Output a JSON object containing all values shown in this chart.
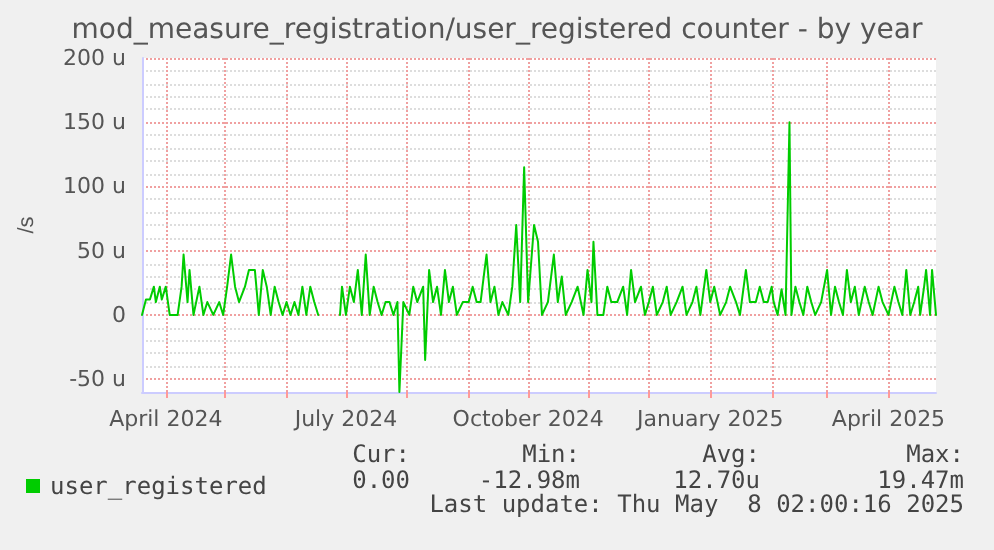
{
  "chart_data": {
    "type": "line",
    "title": "mod_measure_registration/user_registered counter - by year",
    "ylabel": "/s",
    "xlim": [
      "2024-03-20",
      "2025-04-25"
    ],
    "ylim": [
      -60,
      200
    ],
    "xticks": [
      {
        "value": "2024-04-01",
        "label": "April 2024"
      },
      {
        "value": "2024-05-01",
        "label": null
      },
      {
        "value": "2024-06-01",
        "label": null
      },
      {
        "value": "2024-07-01",
        "label": "July 2024"
      },
      {
        "value": "2024-08-01",
        "label": null
      },
      {
        "value": "2024-09-01",
        "label": null
      },
      {
        "value": "2024-10-01",
        "label": "October 2024"
      },
      {
        "value": "2024-11-01",
        "label": null
      },
      {
        "value": "2024-12-01",
        "label": null
      },
      {
        "value": "2025-01-01",
        "label": "January 2025"
      },
      {
        "value": "2025-02-01",
        "label": null
      },
      {
        "value": "2025-03-01",
        "label": null
      },
      {
        "value": "2025-04-01",
        "label": "April 2025"
      }
    ],
    "yticks": [
      {
        "value": -50,
        "label": "-50 u"
      },
      0,
      {
        "value": 50,
        "label": "50 u"
      },
      {
        "value": 100,
        "label": "100 u"
      },
      {
        "value": 150,
        "label": "150 u"
      },
      {
        "value": 200,
        "label": "200 u"
      }
    ],
    "grid": true,
    "legend": "bottom left",
    "marker": "none",
    "line_style": "solid",
    "x": [
      "2024-03-20",
      "2024-03-22",
      "2024-03-24",
      "2024-03-26",
      "2024-03-27",
      "2024-03-29",
      "2024-03-30",
      "2024-04-01",
      "2024-04-03",
      "2024-04-07",
      "2024-04-09",
      "2024-04-10",
      "2024-04-12",
      "2024-04-13",
      "2024-04-15",
      "2024-04-18",
      "2024-04-20",
      "2024-04-22",
      "2024-04-25",
      "2024-04-28",
      "2024-04-30",
      "2024-05-02",
      "2024-05-04",
      "2024-05-06",
      "2024-05-08",
      "2024-05-11",
      "2024-05-13",
      "2024-05-16",
      "2024-05-18",
      "2024-05-20",
      "2024-05-22",
      "2024-05-24",
      "2024-05-26",
      "2024-05-28",
      "2024-05-30",
      "2024-06-01",
      "2024-06-03",
      "2024-06-05",
      "2024-06-07",
      "2024-06-09",
      "2024-06-11",
      "2024-06-13",
      "2024-06-15",
      "2024-06-17",
      "2024-06-18",
      "2024-06-28",
      "2024-06-29",
      "2024-07-01",
      "2024-07-03",
      "2024-07-05",
      "2024-07-07",
      "2024-07-09",
      "2024-07-11",
      "2024-07-13",
      "2024-07-15",
      "2024-07-17",
      "2024-07-19",
      "2024-07-21",
      "2024-07-23",
      "2024-07-25",
      "2024-07-27",
      "2024-07-28",
      "2024-07-30",
      "2024-08-02",
      "2024-08-04",
      "2024-08-06",
      "2024-08-09",
      "2024-08-10",
      "2024-08-12",
      "2024-08-14",
      "2024-08-16",
      "2024-08-18",
      "2024-08-20",
      "2024-08-22",
      "2024-08-24",
      "2024-08-26",
      "2024-08-29",
      "2024-09-01",
      "2024-09-03",
      "2024-09-05",
      "2024-09-07",
      "2024-09-09",
      "2024-09-10",
      "2024-09-12",
      "2024-09-14",
      "2024-09-16",
      "2024-09-18",
      "2024-09-21",
      "2024-09-23",
      "2024-09-25",
      "2024-09-27",
      "2024-09-29",
      "2024-10-01",
      "2024-10-04",
      "2024-10-06",
      "2024-10-08",
      "2024-10-11",
      "2024-10-14",
      "2024-10-16",
      "2024-10-18",
      "2024-10-20",
      "2024-10-23",
      "2024-10-26",
      "2024-10-29",
      "2024-10-31",
      "2024-11-02",
      "2024-11-03",
      "2024-11-05",
      "2024-11-08",
      "2024-11-10",
      "2024-11-12",
      "2024-11-15",
      "2024-11-18",
      "2024-11-20",
      "2024-11-22",
      "2024-11-24",
      "2024-11-27",
      "2024-11-29",
      "2024-12-01",
      "2024-12-03",
      "2024-12-05",
      "2024-12-08",
      "2024-12-10",
      "2024-12-12",
      "2024-12-15",
      "2024-12-18",
      "2024-12-20",
      "2024-12-23",
      "2024-12-25",
      "2024-12-27",
      "2024-12-30",
      "2025-01-01",
      "2025-01-03",
      "2025-01-06",
      "2025-01-09",
      "2025-01-11",
      "2025-01-14",
      "2025-01-16",
      "2025-01-19",
      "2025-01-21",
      "2025-01-24",
      "2025-01-26",
      "2025-01-28",
      "2025-01-30",
      "2025-02-01",
      "2025-02-02",
      "2025-02-04",
      "2025-02-06",
      "2025-02-07",
      "2025-02-08",
      "2025-02-10",
      "2025-02-11",
      "2025-02-13",
      "2025-02-15",
      "2025-02-17",
      "2025-02-19",
      "2025-02-21",
      "2025-02-23",
      "2025-02-26",
      "2025-03-01",
      "2025-03-03",
      "2025-03-05",
      "2025-03-07",
      "2025-03-09",
      "2025-03-11",
      "2025-03-13",
      "2025-03-15",
      "2025-03-17",
      "2025-03-20",
      "2025-03-22",
      "2025-03-24",
      "2025-03-27",
      "2025-03-29",
      "2025-04-01",
      "2025-04-04",
      "2025-04-06",
      "2025-04-08",
      "2025-04-10",
      "2025-04-12",
      "2025-04-14",
      "2025-04-16",
      "2025-04-17",
      "2025-04-19",
      "2025-04-20",
      "2025-04-22",
      "2025-04-23",
      "2025-04-25"
    ],
    "series": [
      {
        "name": "user_registered",
        "color": "#00cc00",
        "values": [
          0,
          12,
          12,
          22,
          10,
          22,
          12,
          22,
          0,
          0,
          22,
          47,
          10,
          35,
          0,
          22,
          0,
          10,
          0,
          10,
          0,
          22,
          47,
          22,
          10,
          22,
          35,
          35,
          0,
          35,
          22,
          0,
          22,
          10,
          0,
          10,
          0,
          10,
          0,
          22,
          0,
          22,
          10,
          0,
          null,
          0,
          22,
          0,
          22,
          10,
          35,
          0,
          47,
          0,
          22,
          10,
          0,
          10,
          10,
          0,
          10,
          -60,
          10,
          0,
          22,
          10,
          22,
          -35,
          35,
          10,
          22,
          0,
          35,
          10,
          22,
          0,
          10,
          10,
          22,
          10,
          10,
          35,
          47,
          10,
          22,
          0,
          10,
          0,
          22,
          70,
          10,
          115,
          10,
          70,
          57,
          0,
          10,
          47,
          10,
          30,
          0,
          10,
          22,
          0,
          35,
          10,
          57,
          0,
          0,
          22,
          10,
          10,
          22,
          0,
          35,
          10,
          22,
          0,
          10,
          22,
          0,
          10,
          22,
          0,
          10,
          22,
          0,
          10,
          22,
          0,
          35,
          10,
          22,
          0,
          10,
          22,
          10,
          0,
          35,
          10,
          10,
          22,
          10,
          10,
          22,
          10,
          0,
          20,
          10,
          0,
          150,
          0,
          22,
          10,
          0,
          22,
          10,
          0,
          10,
          35,
          0,
          22,
          10,
          0,
          35,
          10,
          22,
          0,
          22,
          10,
          0,
          22,
          10,
          0,
          22,
          10,
          0,
          35,
          0,
          10,
          22,
          0,
          22,
          35,
          0,
          35,
          0
        ]
      }
    ],
    "annotations": [
      "Cur:",
      "Min:",
      "Avg:",
      "Max:",
      "0.00",
      "-12.98m",
      "12.70u",
      "19.47m",
      "Last update: Thu May  8 02:00:16 2025"
    ]
  }
}
